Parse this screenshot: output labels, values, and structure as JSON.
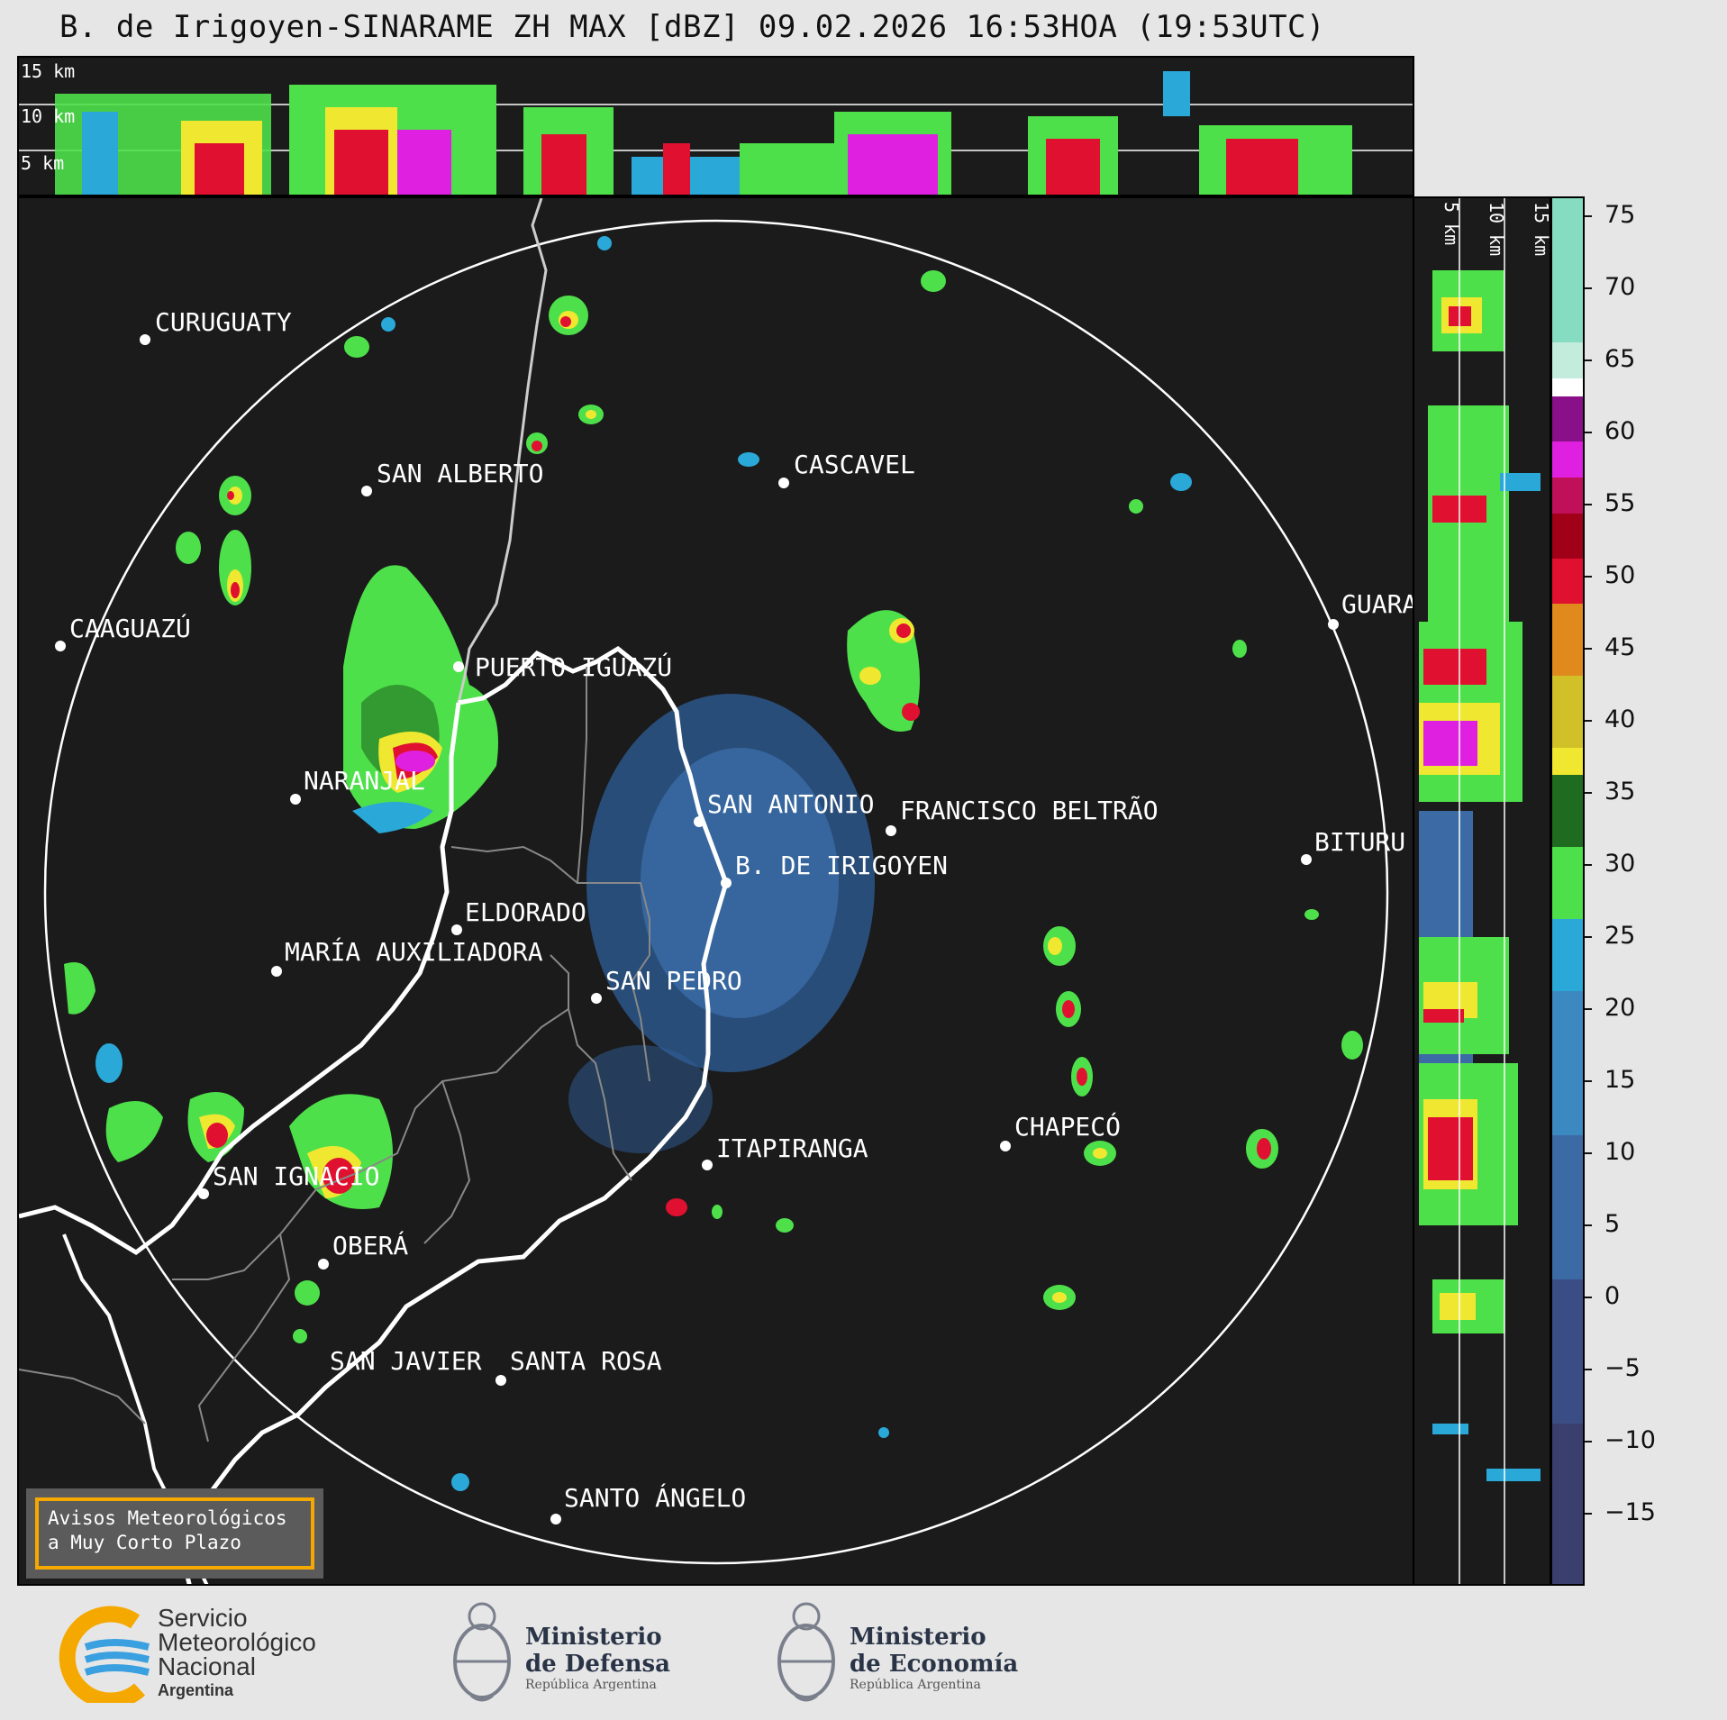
{
  "title": "B. de Irigoyen-SINARAME ZH MAX [dBZ] 09.02.2026 16:53HOA (19:53UTC)",
  "top_panel": {
    "height_labels": [
      "15 km",
      "10 km",
      "5 km"
    ]
  },
  "right_panel": {
    "height_labels": [
      "5 km",
      "10 km",
      "15 km"
    ]
  },
  "cities": [
    {
      "name": "CURUGUATY"
    },
    {
      "name": "SAN ALBERTO"
    },
    {
      "name": "CASCAVEL"
    },
    {
      "name": "CAAGUAZÚ"
    },
    {
      "name": "PUERTO IGUAZÚ"
    },
    {
      "name": "GUARA"
    },
    {
      "name": "NARANJAL"
    },
    {
      "name": "SAN ANTONIO"
    },
    {
      "name": "FRANCISCO BELTRÃO"
    },
    {
      "name": "BITURU"
    },
    {
      "name": "B. DE IRIGOYEN"
    },
    {
      "name": "ELDORADO"
    },
    {
      "name": "MARÍA AUXILIADORA"
    },
    {
      "name": "SAN PEDRO"
    },
    {
      "name": "CHAPECÓ"
    },
    {
      "name": "ITAPIRANGA"
    },
    {
      "name": "SAN IGNACIO"
    },
    {
      "name": "OBERÁ"
    },
    {
      "name": "SAN JAVIER"
    },
    {
      "name": "SANTA ROSA"
    },
    {
      "name": "SANTO ÁNGELO"
    }
  ],
  "warning": {
    "line1": "Avisos Meteorológicos",
    "line2": "a Muy Corto Plazo"
  },
  "colorbar": {
    "ticks": [
      "75",
      "70",
      "65",
      "60",
      "55",
      "50",
      "45",
      "40",
      "35",
      "30",
      "25",
      "20",
      "15",
      "10",
      "5",
      "0",
      "−5",
      "−10",
      "−15"
    ],
    "colors": {
      "lowest": "#3a3f6e",
      "blue_low": "#3c6aa5",
      "cyan": "#2aa8d8",
      "green_light": "#4ee04a",
      "green_dark": "#1f6b1f",
      "yellow": "#f0e830",
      "orange": "#e08a1e",
      "red": "#e01030",
      "dark_red": "#a00018",
      "magenta": "#e020e0",
      "purple": "#8a108a",
      "white": "#ffffff",
      "mint": "#80e0c0"
    }
  },
  "footer": {
    "smn": {
      "line1": "Servicio",
      "line2": "Meteorológico",
      "line3": "Nacional",
      "line4": "Argentina"
    },
    "defensa": {
      "line1": "Ministerio",
      "line2": "de Defensa",
      "line3": "República Argentina"
    },
    "economia": {
      "line1": "Ministerio",
      "line2": "de Economía",
      "line3": "República Argentina"
    }
  }
}
